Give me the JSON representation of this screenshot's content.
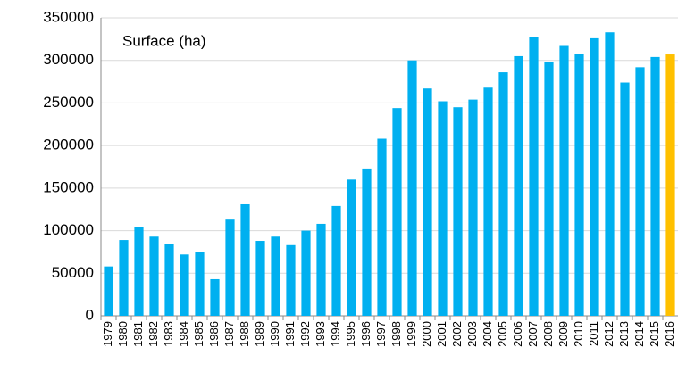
{
  "chart_data": {
    "type": "bar",
    "annotation": "Surface (ha)",
    "categories": [
      "1979",
      "1980",
      "1981",
      "1982",
      "1983",
      "1984",
      "1985",
      "1986",
      "1987",
      "1988",
      "1989",
      "1990",
      "1991",
      "1992",
      "1993",
      "1994",
      "1995",
      "1996",
      "1997",
      "1998",
      "1999",
      "2000",
      "2001",
      "2002",
      "2003",
      "2004",
      "2005",
      "2006",
      "2007",
      "2008",
      "2009",
      "2010",
      "2011",
      "2012",
      "2013",
      "2014",
      "2015",
      "2016"
    ],
    "values": [
      58000,
      89000,
      104000,
      93000,
      84000,
      72000,
      75000,
      43000,
      113000,
      131000,
      88000,
      93000,
      83000,
      100000,
      108000,
      129000,
      160000,
      173000,
      208000,
      244000,
      300000,
      267000,
      252000,
      245000,
      254000,
      268000,
      286000,
      305000,
      327000,
      298000,
      317000,
      308000,
      326000,
      333000,
      274000,
      292000,
      304000,
      307000
    ],
    "colors": [
      "#00b0f0",
      "#00b0f0",
      "#00b0f0",
      "#00b0f0",
      "#00b0f0",
      "#00b0f0",
      "#00b0f0",
      "#00b0f0",
      "#00b0f0",
      "#00b0f0",
      "#00b0f0",
      "#00b0f0",
      "#00b0f0",
      "#00b0f0",
      "#00b0f0",
      "#00b0f0",
      "#00b0f0",
      "#00b0f0",
      "#00b0f0",
      "#00b0f0",
      "#00b0f0",
      "#00b0f0",
      "#00b0f0",
      "#00b0f0",
      "#00b0f0",
      "#00b0f0",
      "#00b0f0",
      "#00b0f0",
      "#00b0f0",
      "#00b0f0",
      "#00b0f0",
      "#00b0f0",
      "#00b0f0",
      "#00b0f0",
      "#00b0f0",
      "#00b0f0",
      "#00b0f0",
      "#ffc000"
    ],
    "ylim": [
      0,
      350000
    ],
    "yticks": [
      0,
      50000,
      100000,
      150000,
      200000,
      250000,
      300000,
      350000
    ],
    "grid": true
  }
}
